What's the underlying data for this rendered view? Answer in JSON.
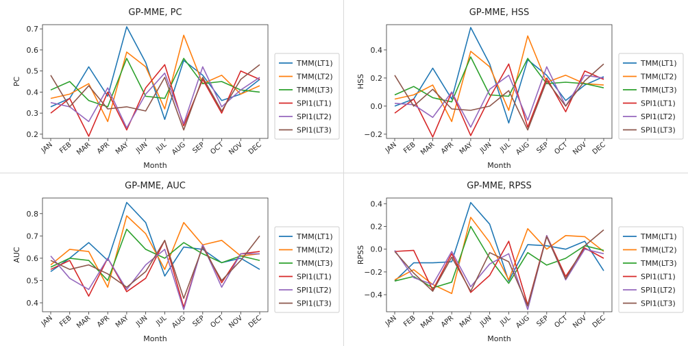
{
  "chart_data": [
    {
      "type": "line",
      "title": "GP-MME, PC",
      "xlabel": "Month",
      "ylabel": "PC",
      "categories": [
        "JAN",
        "FEB",
        "MAR",
        "APR",
        "MAY",
        "JUN",
        "JUL",
        "AUG",
        "SEP",
        "OCT",
        "NOV",
        "DEC"
      ],
      "ylim": [
        0.18,
        0.72
      ],
      "yticks": [
        "0.2",
        "0.3",
        "0.4",
        "0.5",
        "0.6",
        "0.7"
      ],
      "legend": "right",
      "grid": false,
      "series": [
        {
          "name": "TMM(LT1)",
          "color": "#1f77b4",
          "values": [
            0.33,
            0.37,
            0.52,
            0.38,
            0.71,
            0.54,
            0.27,
            0.55,
            0.48,
            0.36,
            0.39,
            0.46
          ]
        },
        {
          "name": "TMM(LT2)",
          "color": "#ff7f0e",
          "values": [
            0.37,
            0.39,
            0.44,
            0.26,
            0.59,
            0.52,
            0.32,
            0.67,
            0.44,
            0.48,
            0.39,
            0.43
          ]
        },
        {
          "name": "TMM(LT3)",
          "color": "#2ca02c",
          "values": [
            0.41,
            0.45,
            0.36,
            0.33,
            0.56,
            0.38,
            0.37,
            0.56,
            0.44,
            0.45,
            0.41,
            0.4
          ]
        },
        {
          "name": "SPI1(LT1)",
          "color": "#d62728",
          "values": [
            0.3,
            0.37,
            0.19,
            0.4,
            0.22,
            0.42,
            0.53,
            0.24,
            0.46,
            0.3,
            0.5,
            0.46
          ]
        },
        {
          "name": "SPI1(LT2)",
          "color": "#9467bd",
          "values": [
            0.35,
            0.33,
            0.26,
            0.42,
            0.23,
            0.39,
            0.49,
            0.25,
            0.52,
            0.33,
            0.41,
            0.47
          ]
        },
        {
          "name": "SPI1(LT3)",
          "color": "#8c564b",
          "values": [
            0.48,
            0.33,
            0.43,
            0.32,
            0.33,
            0.31,
            0.47,
            0.22,
            0.47,
            0.31,
            0.46,
            0.53
          ]
        }
      ]
    },
    {
      "type": "line",
      "title": "GP-MME, HSS",
      "xlabel": "Month",
      "ylabel": "HSS",
      "categories": [
        "JAN",
        "FEB",
        "MAR",
        "APR",
        "MAY",
        "JUN",
        "JUL",
        "AUG",
        "SEP",
        "OCT",
        "NOV",
        "DEC"
      ],
      "ylim": [
        -0.23,
        0.58
      ],
      "yticks": [
        "−0.2",
        "0.0",
        "0.2",
        "0.4"
      ],
      "legend": "right",
      "grid": false,
      "series": [
        {
          "name": "TMM(LT1)",
          "color": "#1f77b4",
          "values": [
            0.0,
            0.05,
            0.27,
            0.05,
            0.56,
            0.3,
            -0.12,
            0.33,
            0.22,
            0.04,
            0.15,
            0.21
          ]
        },
        {
          "name": "TMM(LT2)",
          "color": "#ff7f0e",
          "values": [
            0.05,
            0.08,
            0.15,
            -0.11,
            0.39,
            0.28,
            -0.03,
            0.5,
            0.17,
            0.22,
            0.16,
            0.15
          ]
        },
        {
          "name": "TMM(LT3)",
          "color": "#2ca02c",
          "values": [
            0.08,
            0.14,
            0.06,
            0.03,
            0.35,
            0.08,
            0.07,
            0.34,
            0.16,
            0.17,
            0.16,
            0.13
          ]
        },
        {
          "name": "SPI1(LT1)",
          "color": "#d62728",
          "values": [
            -0.05,
            0.05,
            -0.22,
            0.1,
            -0.21,
            0.06,
            0.3,
            -0.15,
            0.2,
            -0.04,
            0.25,
            0.19
          ]
        },
        {
          "name": "SPI1(LT2)",
          "color": "#9467bd",
          "values": [
            0.02,
            0.01,
            -0.08,
            0.1,
            -0.15,
            0.12,
            0.22,
            -0.1,
            0.28,
            0.0,
            0.22,
            0.2
          ]
        },
        {
          "name": "SPI1(LT3)",
          "color": "#8c564b",
          "values": [
            0.22,
            0.0,
            0.12,
            -0.02,
            -0.03,
            0.0,
            0.11,
            -0.17,
            0.18,
            0.0,
            0.18,
            0.3
          ]
        }
      ]
    },
    {
      "type": "line",
      "title": "GP-MME, AUC",
      "xlabel": "Month",
      "ylabel": "AUC",
      "categories": [
        "JAN",
        "FEB",
        "MAR",
        "APR",
        "MAY",
        "JUN",
        "JUL",
        "AUG",
        "SEP",
        "OCT",
        "NOV",
        "DEC"
      ],
      "ylim": [
        0.36,
        0.87
      ],
      "yticks": [
        "0.4",
        "0.5",
        "0.6",
        "0.7",
        "0.8"
      ],
      "legend": "right",
      "grid": false,
      "series": [
        {
          "name": "TMM(LT1)",
          "color": "#1f77b4",
          "values": [
            0.54,
            0.6,
            0.67,
            0.59,
            0.85,
            0.76,
            0.52,
            0.65,
            0.64,
            0.58,
            0.6,
            0.55
          ]
        },
        {
          "name": "TMM(LT2)",
          "color": "#ff7f0e",
          "values": [
            0.57,
            0.64,
            0.63,
            0.47,
            0.79,
            0.71,
            0.55,
            0.76,
            0.66,
            0.68,
            0.61,
            0.62
          ]
        },
        {
          "name": "TMM(LT3)",
          "color": "#2ca02c",
          "values": [
            0.56,
            0.6,
            0.59,
            0.5,
            0.73,
            0.64,
            0.6,
            0.67,
            0.62,
            0.58,
            0.61,
            0.59
          ]
        },
        {
          "name": "SPI1(LT1)",
          "color": "#d62728",
          "values": [
            0.55,
            0.59,
            0.43,
            0.6,
            0.45,
            0.51,
            0.68,
            0.38,
            0.66,
            0.49,
            0.62,
            0.63
          ]
        },
        {
          "name": "SPI1(LT2)",
          "color": "#9467bd",
          "values": [
            0.61,
            0.51,
            0.46,
            0.6,
            0.46,
            0.57,
            0.64,
            0.37,
            0.66,
            0.47,
            0.62,
            0.62
          ]
        },
        {
          "name": "SPI1(LT3)",
          "color": "#8c564b",
          "values": [
            0.59,
            0.55,
            0.57,
            0.53,
            0.47,
            0.54,
            0.68,
            0.42,
            0.65,
            0.5,
            0.59,
            0.7
          ]
        }
      ]
    },
    {
      "type": "line",
      "title": "GP-MME, RPSS",
      "xlabel": "Month",
      "ylabel": "RPSS",
      "categories": [
        "JAN",
        "FEB",
        "MAR",
        "APR",
        "MAY",
        "JUN",
        "JUL",
        "AUG",
        "SEP",
        "OCT",
        "NOV",
        "DEC"
      ],
      "ylim": [
        -0.55,
        0.45
      ],
      "yticks": [
        "−0.4",
        "−0.2",
        "0.0",
        "0.2",
        "0.4"
      ],
      "legend": "right",
      "grid": false,
      "series": [
        {
          "name": "TMM(LT1)",
          "color": "#1f77b4",
          "values": [
            -0.28,
            -0.12,
            -0.12,
            -0.11,
            0.41,
            0.22,
            -0.28,
            0.04,
            0.03,
            0.0,
            0.07,
            -0.19
          ]
        },
        {
          "name": "TMM(LT2)",
          "color": "#ff7f0e",
          "values": [
            -0.27,
            -0.18,
            -0.31,
            -0.39,
            0.28,
            0.06,
            -0.27,
            0.18,
            0.0,
            0.12,
            0.11,
            -0.02
          ]
        },
        {
          "name": "TMM(LT3)",
          "color": "#2ca02c",
          "values": [
            -0.28,
            -0.24,
            -0.34,
            -0.29,
            0.2,
            -0.08,
            -0.3,
            -0.03,
            -0.14,
            -0.08,
            0.03,
            -0.01
          ]
        },
        {
          "name": "SPI1(LT1)",
          "color": "#d62728",
          "values": [
            -0.02,
            -0.01,
            -0.36,
            -0.04,
            -0.38,
            -0.23,
            0.07,
            -0.49,
            0.12,
            -0.24,
            0.01,
            -0.08
          ]
        },
        {
          "name": "SPI1(LT2)",
          "color": "#9467bd",
          "values": [
            -0.01,
            -0.25,
            -0.31,
            -0.02,
            -0.33,
            -0.13,
            -0.04,
            -0.53,
            0.12,
            -0.27,
            0.0,
            -0.04
          ]
        },
        {
          "name": "SPI1(LT3)",
          "color": "#8c564b",
          "values": [
            -0.02,
            -0.21,
            -0.37,
            -0.07,
            -0.37,
            -0.03,
            -0.11,
            -0.5,
            0.11,
            -0.26,
            0.03,
            0.17
          ]
        }
      ]
    }
  ]
}
